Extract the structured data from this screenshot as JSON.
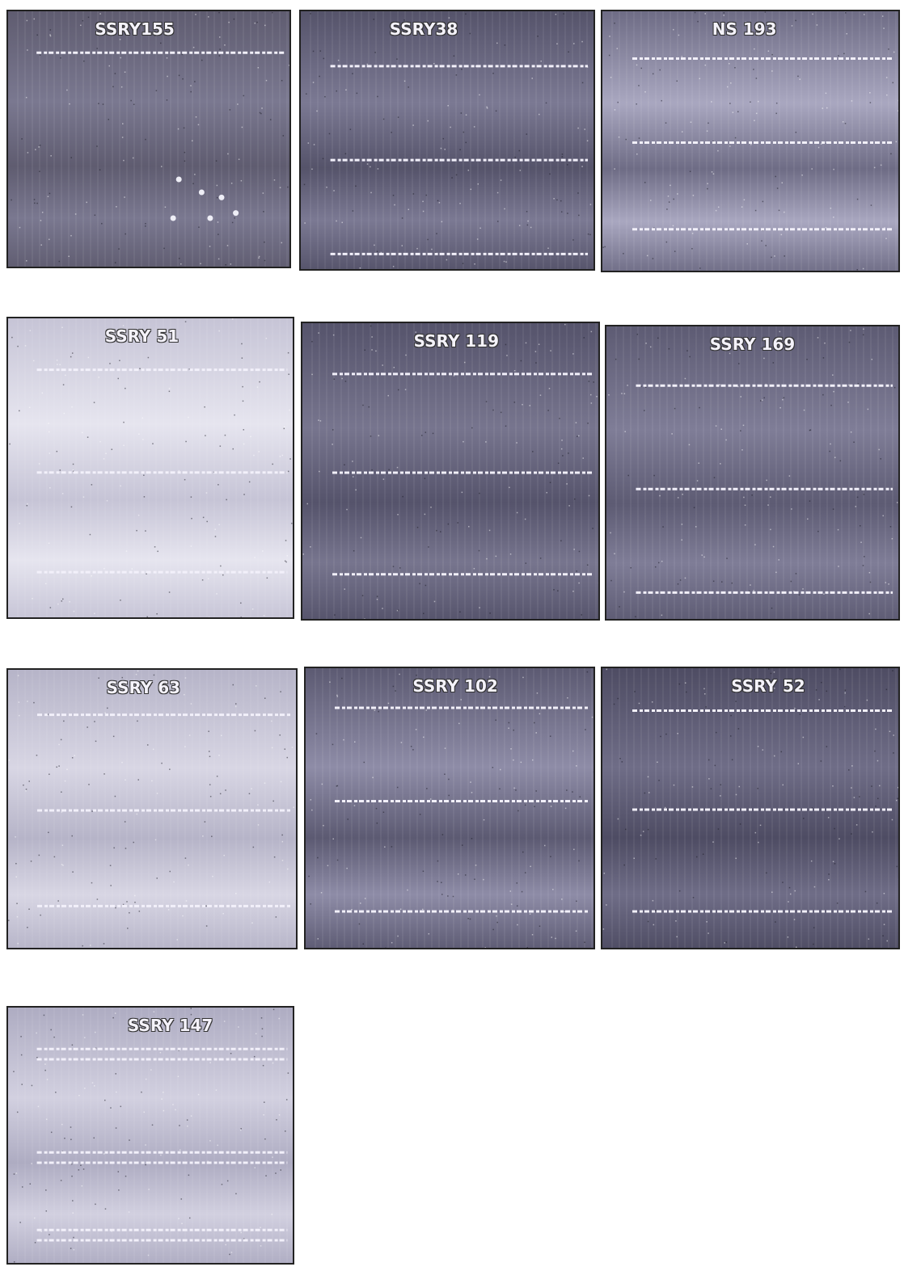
{
  "panels": [
    {
      "label": "SSRY155"
    },
    {
      "label": "SSRY38"
    },
    {
      "label": "NS 193"
    },
    {
      "label": "SSRY 51"
    },
    {
      "label": "SSRY 119"
    },
    {
      "label": "SSRY 169"
    },
    {
      "label": "SSRY 63"
    },
    {
      "label": "SSRY 102"
    },
    {
      "label": "SSRY 52"
    },
    {
      "label": "SSRY 147"
    }
  ]
}
